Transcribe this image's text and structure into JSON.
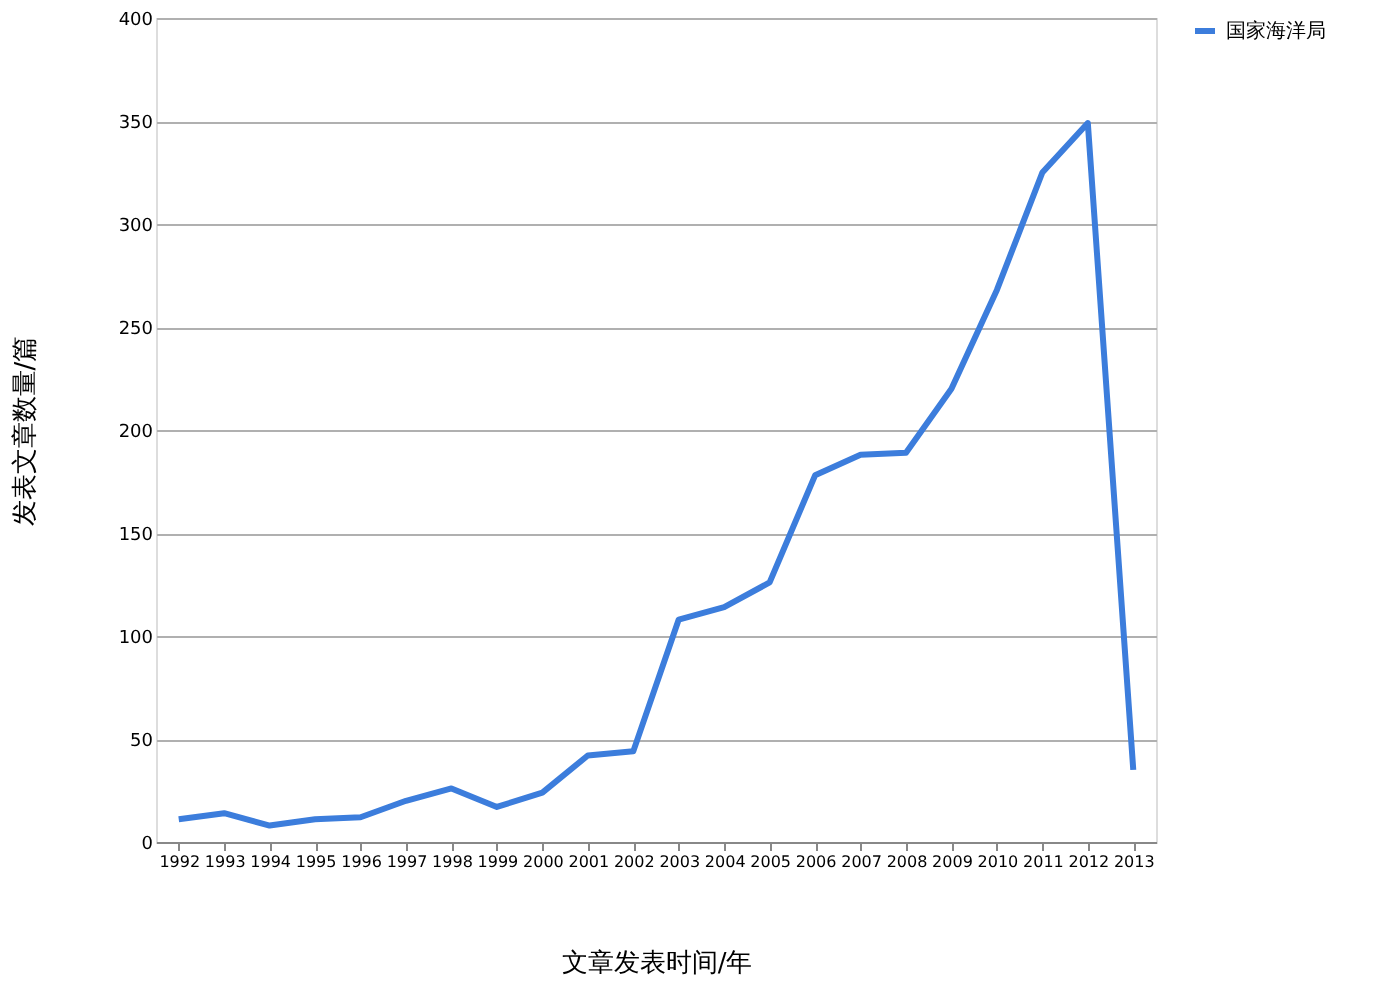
{
  "chart_data": {
    "type": "line",
    "xlabel": "文章发表时间/年",
    "ylabel": "发表文章数量/篇",
    "categories": [
      "1992",
      "1993",
      "1994",
      "1995",
      "1996",
      "1997",
      "1998",
      "1999",
      "2000",
      "2001",
      "2002",
      "2003",
      "2004",
      "2005",
      "2006",
      "2007",
      "2008",
      "2009",
      "2010",
      "2011",
      "2012",
      "2013"
    ],
    "series": [
      {
        "name": "国家海洋局",
        "color": "#3c7ddc",
        "values": [
          11,
          14,
          8,
          11,
          12,
          20,
          26,
          17,
          24,
          42,
          44,
          108,
          114,
          126,
          178,
          188,
          189,
          220,
          268,
          325,
          349,
          35
        ]
      }
    ],
    "ylim": [
      0,
      400
    ],
    "yticks": [
      0,
      50,
      100,
      150,
      200,
      250,
      300,
      350,
      400
    ],
    "grid": "y",
    "legend": "right",
    "marker": "none",
    "line_style": "solid"
  }
}
